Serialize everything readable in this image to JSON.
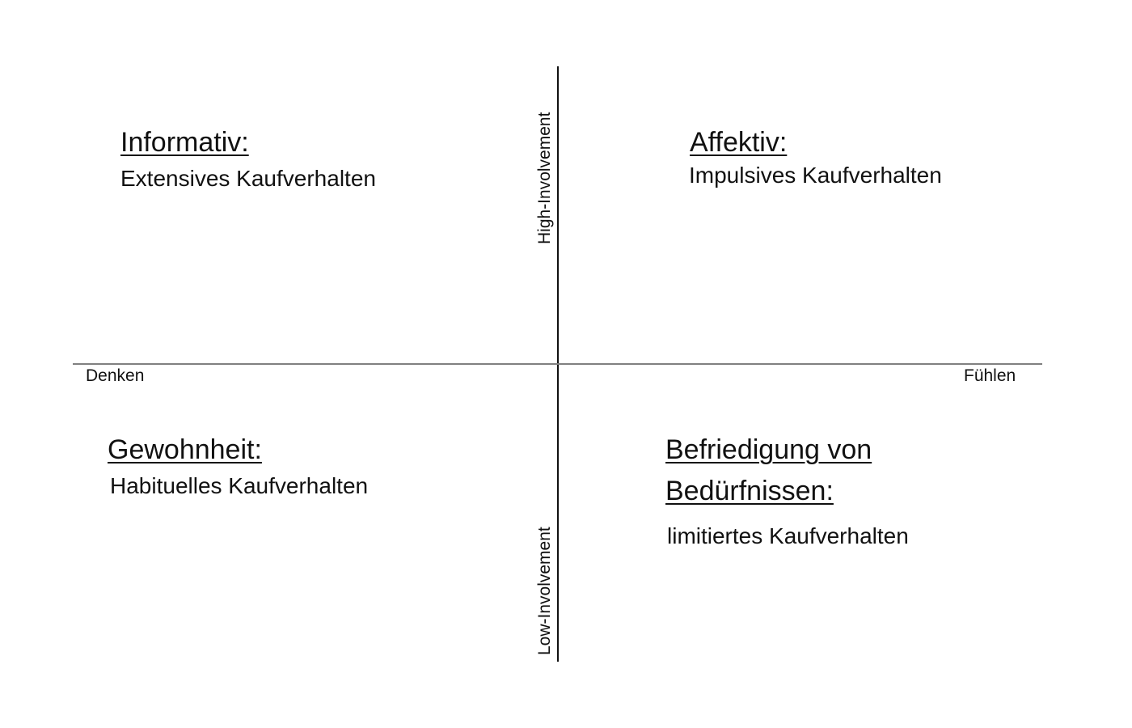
{
  "axes": {
    "left": "Denken",
    "right": "Fühlen",
    "top": "High-Involvement",
    "bottom": "Low-Involvement",
    "horizontal_line_color": "#808080",
    "vertical_line_color": "#111111"
  },
  "quadrants": {
    "top_left": {
      "title": "Informativ:",
      "subtitle": "Extensives Kaufverhalten"
    },
    "top_right": {
      "title": "Affektiv:",
      "subtitle": "Impulsives Kaufverhalten"
    },
    "bottom_left": {
      "title": "Gewohnheit:",
      "subtitle": "Habituelles Kaufverhalten"
    },
    "bottom_right": {
      "title_line1": "Befriedigung von",
      "title_line2": "Bedürfnissen:",
      "subtitle": "limitiertes Kaufverhalten"
    }
  }
}
